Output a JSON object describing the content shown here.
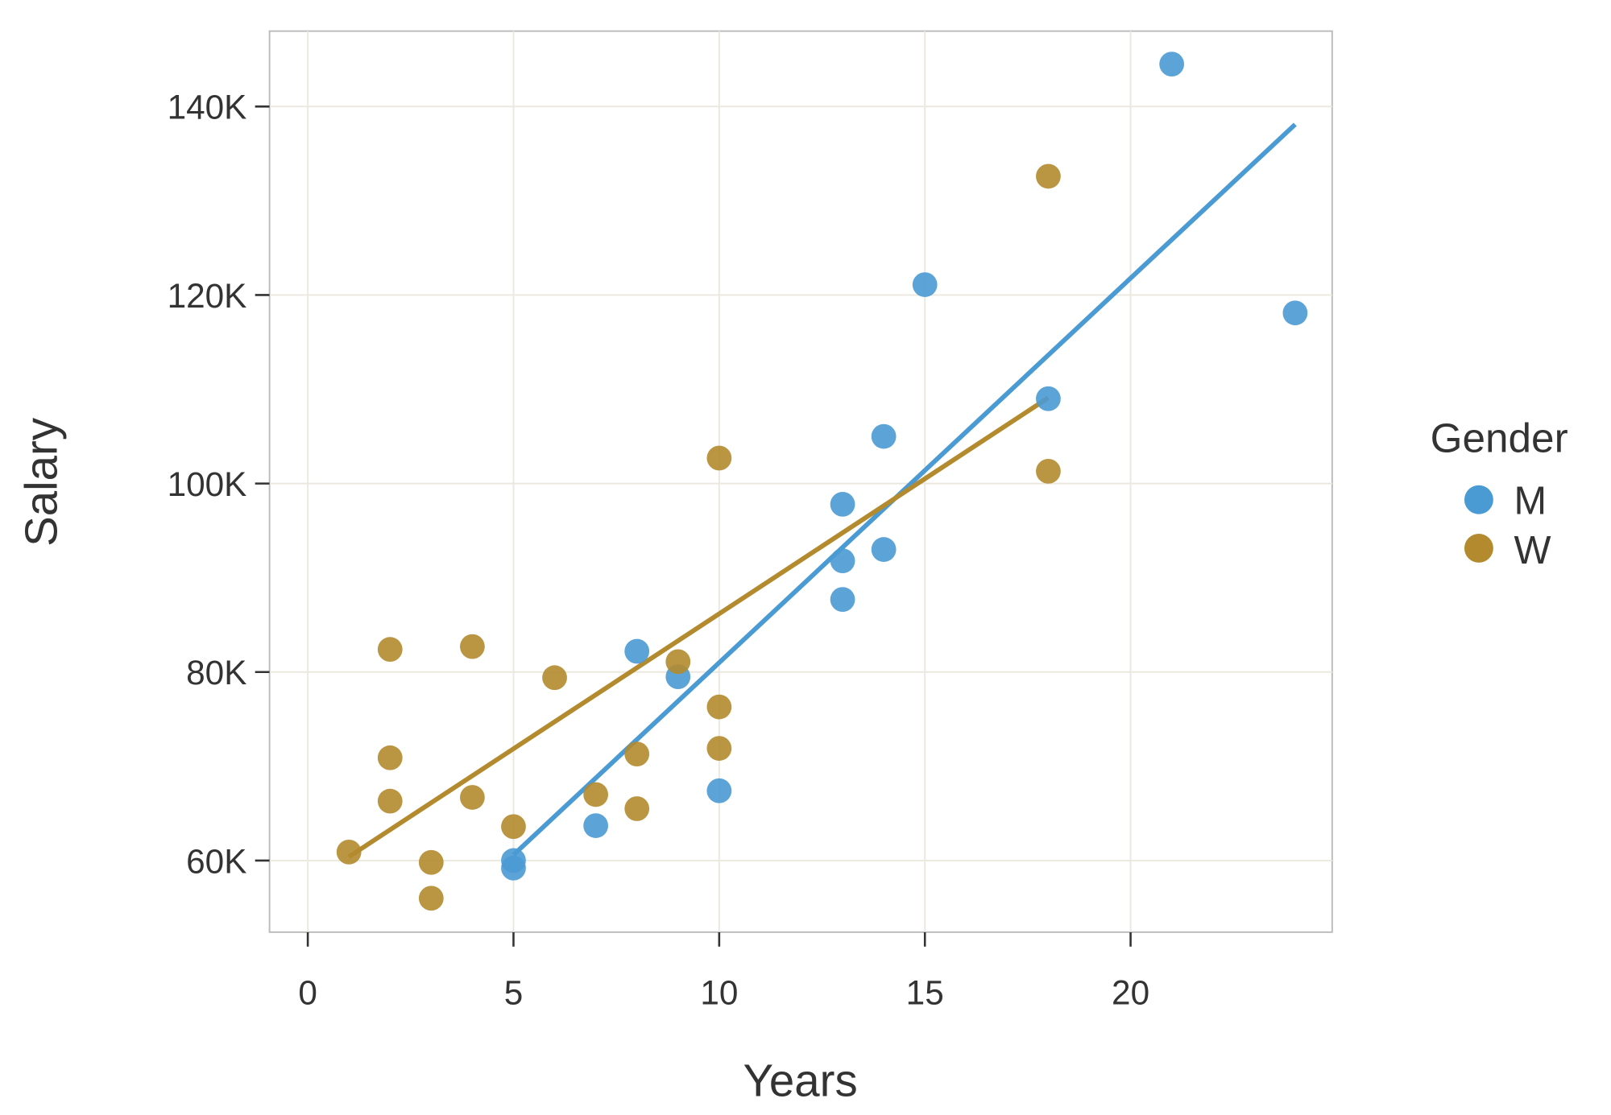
{
  "chart_data": {
    "type": "scatter",
    "title": "",
    "xlabel": "Years",
    "ylabel": "Salary",
    "xlim": [
      -0.93,
      24.9
    ],
    "ylim": [
      52.4,
      148
    ],
    "xticks": [
      0,
      5,
      10,
      15,
      20
    ],
    "xtick_labels": [
      "0",
      "5",
      "10",
      "15",
      "20"
    ],
    "yticks": [
      60,
      80,
      100,
      120,
      140
    ],
    "ytick_labels": [
      "60K",
      "80K",
      "100K",
      "120K",
      "140K"
    ],
    "y_units": "thousands",
    "grid": true,
    "legend": {
      "title": "Gender",
      "placement": "right"
    },
    "series": [
      {
        "name": "M",
        "color": "#4a9ad4",
        "points": [
          [
            5,
            59.2
          ],
          [
            5,
            60.0
          ],
          [
            7,
            63.7
          ],
          [
            8,
            82.2
          ],
          [
            9,
            79.5
          ],
          [
            10,
            67.4
          ],
          [
            13,
            97.8
          ],
          [
            13,
            91.8
          ],
          [
            13,
            87.7
          ],
          [
            14,
            105.0
          ],
          [
            14,
            93.0
          ],
          [
            15,
            121.1
          ],
          [
            18,
            109.0
          ],
          [
            21,
            144.5
          ],
          [
            24,
            118.1
          ]
        ],
        "fit_line": [
          [
            5,
            60.6
          ],
          [
            24,
            138.1
          ]
        ]
      },
      {
        "name": "W",
        "color": "#b38b2e",
        "points": [
          [
            1,
            60.9
          ],
          [
            2,
            82.4
          ],
          [
            2,
            70.9
          ],
          [
            2,
            66.3
          ],
          [
            3,
            59.8
          ],
          [
            3,
            56.0
          ],
          [
            4,
            82.7
          ],
          [
            4,
            66.7
          ],
          [
            5,
            63.6
          ],
          [
            6,
            79.4
          ],
          [
            7,
            67.0
          ],
          [
            8,
            71.3
          ],
          [
            8,
            65.5
          ],
          [
            9,
            81.1
          ],
          [
            10,
            102.7
          ],
          [
            10,
            76.3
          ],
          [
            10,
            71.9
          ],
          [
            18,
            132.6
          ],
          [
            18,
            101.3
          ]
        ],
        "fit_line": [
          [
            1,
            60.4
          ],
          [
            18,
            109.1
          ]
        ]
      }
    ]
  }
}
